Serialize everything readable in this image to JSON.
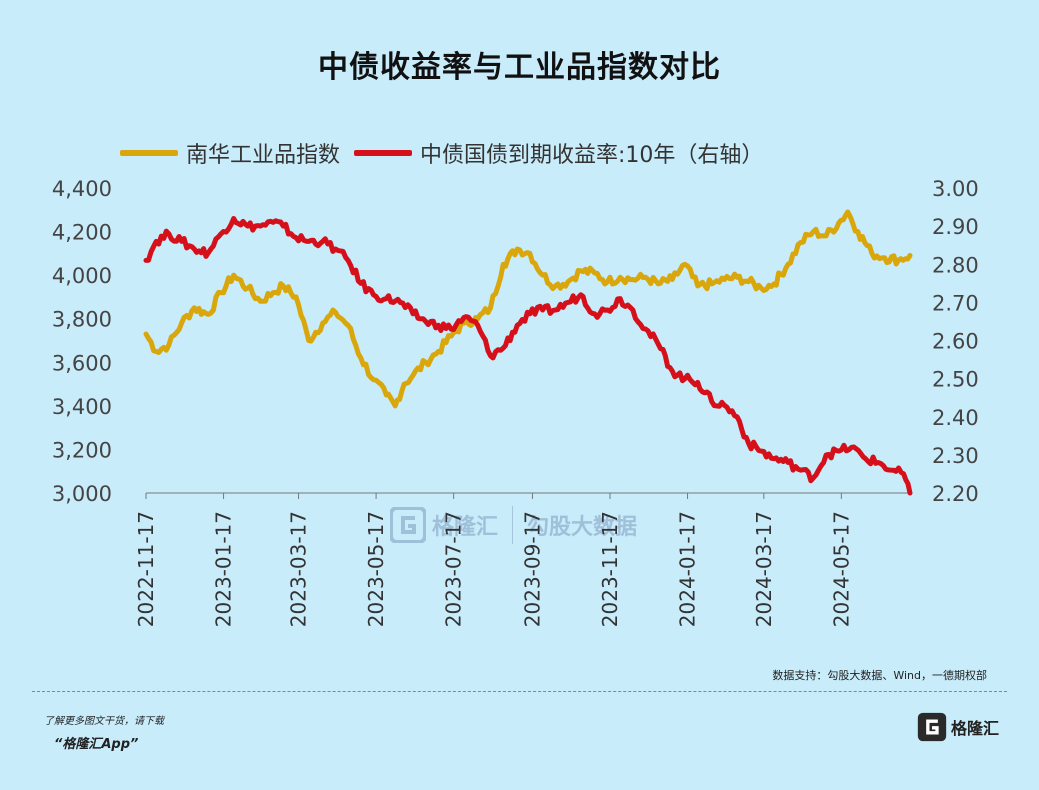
{
  "footer": {
    "source": "数据支持：勾股大数据、Wind，一德期权部",
    "promo_line1": "了解更多图文干货，请下载",
    "promo_line2": "“格隆汇App”",
    "logo_text": "格隆汇"
  },
  "watermark": {
    "brand1": "格隆汇",
    "brand2": "勾股大数据"
  },
  "colors": {
    "nanhua": "#d9a70b",
    "bond": "#d6101a",
    "background": "#c9ecfb"
  },
  "chart_data": {
    "type": "line",
    "title": "中债收益率与工业品指数对比",
    "x_ticks": [
      "2022-11-17",
      "2023-01-17",
      "2023-03-17",
      "2023-05-17",
      "2023-07-17",
      "2023-09-17",
      "2023-11-17",
      "2024-01-17",
      "2024-03-17",
      "2024-05-17"
    ],
    "x_range": [
      "2022-11-17",
      "2024-07-10"
    ],
    "y_left": {
      "min": 3000,
      "max": 4400,
      "ticks": [
        "3,000",
        "3,200",
        "3,400",
        "3,600",
        "3,800",
        "4,000",
        "4,200",
        "4,400"
      ]
    },
    "y_right": {
      "min": 2.2,
      "max": 3.0,
      "ticks": [
        "2.20",
        "2.30",
        "2.40",
        "2.50",
        "2.60",
        "2.70",
        "2.80",
        "2.90",
        "3.00"
      ]
    },
    "legend_position": "top-left",
    "grid": false,
    "series": [
      {
        "name": "南华工业品指数",
        "axis": "left",
        "points": [
          [
            "2022-11-17",
            3730
          ],
          [
            "2022-11-25",
            3650
          ],
          [
            "2022-12-05",
            3680
          ],
          [
            "2022-12-15",
            3780
          ],
          [
            "2022-12-25",
            3850
          ],
          [
            "2023-01-05",
            3820
          ],
          [
            "2023-01-15",
            3920
          ],
          [
            "2023-01-25",
            4000
          ],
          [
            "2023-02-05",
            3940
          ],
          [
            "2023-02-15",
            3880
          ],
          [
            "2023-02-25",
            3920
          ],
          [
            "2023-03-05",
            3950
          ],
          [
            "2023-03-15",
            3900
          ],
          [
            "2023-03-25",
            3700
          ],
          [
            "2023-04-05",
            3780
          ],
          [
            "2023-04-15",
            3830
          ],
          [
            "2023-04-25",
            3770
          ],
          [
            "2023-05-05",
            3620
          ],
          [
            "2023-05-15",
            3520
          ],
          [
            "2023-05-25",
            3450
          ],
          [
            "2023-06-01",
            3400
          ],
          [
            "2023-06-08",
            3500
          ],
          [
            "2023-06-15",
            3540
          ],
          [
            "2023-06-25",
            3600
          ],
          [
            "2023-07-05",
            3650
          ],
          [
            "2023-07-15",
            3720
          ],
          [
            "2023-07-25",
            3780
          ],
          [
            "2023-08-05",
            3800
          ],
          [
            "2023-08-15",
            3850
          ],
          [
            "2023-08-25",
            4050
          ],
          [
            "2023-09-05",
            4120
          ],
          [
            "2023-09-15",
            4100
          ],
          [
            "2023-09-25",
            4000
          ],
          [
            "2023-10-05",
            3950
          ],
          [
            "2023-10-15",
            3970
          ],
          [
            "2023-10-25",
            4020
          ],
          [
            "2023-11-05",
            4010
          ],
          [
            "2023-11-15",
            3970
          ],
          [
            "2023-11-25",
            3990
          ],
          [
            "2023-12-05",
            3980
          ],
          [
            "2023-12-15",
            3990
          ],
          [
            "2023-12-25",
            3960
          ],
          [
            "2024-01-05",
            3980
          ],
          [
            "2024-01-15",
            4050
          ],
          [
            "2024-01-25",
            3950
          ],
          [
            "2024-02-05",
            3960
          ],
          [
            "2024-02-15",
            3980
          ],
          [
            "2024-02-25",
            3990
          ],
          [
            "2024-03-05",
            3970
          ],
          [
            "2024-03-15",
            3940
          ],
          [
            "2024-03-25",
            3960
          ],
          [
            "2024-04-05",
            4050
          ],
          [
            "2024-04-15",
            4150
          ],
          [
            "2024-04-25",
            4200
          ],
          [
            "2024-05-05",
            4180
          ],
          [
            "2024-05-15",
            4240
          ],
          [
            "2024-05-22",
            4290
          ],
          [
            "2024-05-30",
            4200
          ],
          [
            "2024-06-10",
            4100
          ],
          [
            "2024-06-20",
            4080
          ],
          [
            "2024-07-01",
            4070
          ],
          [
            "2024-07-10",
            4090
          ]
        ]
      },
      {
        "name": "中债国债到期收益率:10年（右轴）",
        "axis": "right",
        "points": [
          [
            "2022-11-17",
            2.81
          ],
          [
            "2022-11-25",
            2.86
          ],
          [
            "2022-12-05",
            2.88
          ],
          [
            "2022-12-15",
            2.86
          ],
          [
            "2022-12-25",
            2.84
          ],
          [
            "2023-01-05",
            2.83
          ],
          [
            "2023-01-15",
            2.88
          ],
          [
            "2023-01-25",
            2.92
          ],
          [
            "2023-02-05",
            2.9
          ],
          [
            "2023-02-15",
            2.9
          ],
          [
            "2023-02-25",
            2.91
          ],
          [
            "2023-03-05",
            2.9
          ],
          [
            "2023-03-15",
            2.87
          ],
          [
            "2023-03-25",
            2.86
          ],
          [
            "2023-04-05",
            2.86
          ],
          [
            "2023-04-15",
            2.84
          ],
          [
            "2023-04-25",
            2.81
          ],
          [
            "2023-05-05",
            2.75
          ],
          [
            "2023-05-15",
            2.72
          ],
          [
            "2023-05-25",
            2.71
          ],
          [
            "2023-06-05",
            2.7
          ],
          [
            "2023-06-15",
            2.67
          ],
          [
            "2023-06-25",
            2.65
          ],
          [
            "2023-07-05",
            2.64
          ],
          [
            "2023-07-15",
            2.63
          ],
          [
            "2023-07-25",
            2.66
          ],
          [
            "2023-08-05",
            2.64
          ],
          [
            "2023-08-15",
            2.56
          ],
          [
            "2023-08-25",
            2.58
          ],
          [
            "2023-09-05",
            2.64
          ],
          [
            "2023-09-15",
            2.67
          ],
          [
            "2023-09-25",
            2.68
          ],
          [
            "2023-10-05",
            2.68
          ],
          [
            "2023-10-15",
            2.7
          ],
          [
            "2023-10-25",
            2.72
          ],
          [
            "2023-11-05",
            2.67
          ],
          [
            "2023-11-15",
            2.68
          ],
          [
            "2023-11-25",
            2.71
          ],
          [
            "2023-12-05",
            2.68
          ],
          [
            "2023-12-15",
            2.63
          ],
          [
            "2023-12-25",
            2.59
          ],
          [
            "2024-01-05",
            2.52
          ],
          [
            "2024-01-15",
            2.5
          ],
          [
            "2024-01-25",
            2.49
          ],
          [
            "2024-02-05",
            2.44
          ],
          [
            "2024-02-15",
            2.43
          ],
          [
            "2024-02-25",
            2.4
          ],
          [
            "2024-03-05",
            2.33
          ],
          [
            "2024-03-15",
            2.31
          ],
          [
            "2024-03-25",
            2.29
          ],
          [
            "2024-04-05",
            2.28
          ],
          [
            "2024-04-15",
            2.26
          ],
          [
            "2024-04-25",
            2.24
          ],
          [
            "2024-05-05",
            2.3
          ],
          [
            "2024-05-15",
            2.31
          ],
          [
            "2024-05-25",
            2.32
          ],
          [
            "2024-06-05",
            2.29
          ],
          [
            "2024-06-15",
            2.28
          ],
          [
            "2024-06-25",
            2.26
          ],
          [
            "2024-07-05",
            2.25
          ],
          [
            "2024-07-10",
            2.2
          ]
        ]
      }
    ]
  }
}
